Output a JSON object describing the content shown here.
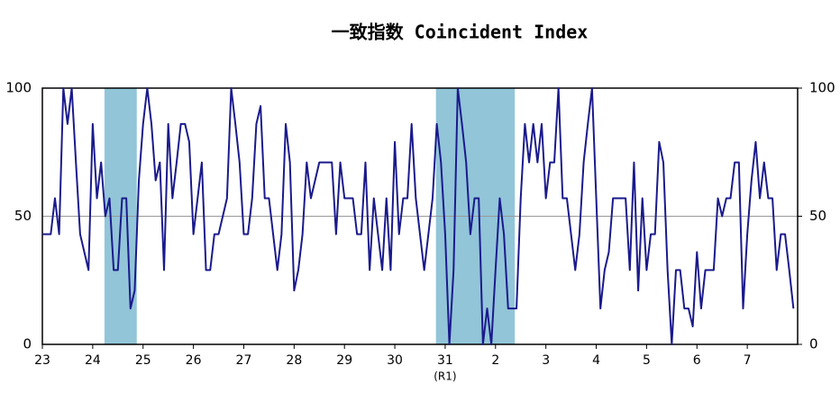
{
  "chart_data": {
    "type": "line",
    "title": "一致指数 Coincident Index",
    "annotation": "(R1)",
    "xlim": [
      0,
      180
    ],
    "xticks": [
      {
        "value": 0,
        "label": "23"
      },
      {
        "value": 12,
        "label": "24"
      },
      {
        "value": 24,
        "label": "25"
      },
      {
        "value": 36,
        "label": "26"
      },
      {
        "value": 48,
        "label": "27"
      },
      {
        "value": 60,
        "label": "28"
      },
      {
        "value": 72,
        "label": "29"
      },
      {
        "value": 84,
        "label": "30"
      },
      {
        "value": 96,
        "label": "31"
      },
      {
        "value": 108,
        "label": "2"
      },
      {
        "value": 120,
        "label": "3"
      },
      {
        "value": 132,
        "label": "4"
      },
      {
        "value": 144,
        "label": "5"
      },
      {
        "value": 156,
        "label": "6"
      },
      {
        "value": 168,
        "label": "7"
      }
    ],
    "ylim": [
      0,
      100
    ],
    "yticks": [
      0,
      50,
      100
    ],
    "y2lim": [
      0,
      100
    ],
    "y2ticks": [
      0,
      50,
      100
    ],
    "grid": true,
    "shaded": [
      [
        14.8,
        22.5
      ],
      [
        93.8,
        112.6
      ]
    ],
    "shade_color": "#92c5d8",
    "series": [
      {
        "color": "#1a1a8c",
        "values": [
          43,
          43,
          43,
          57,
          43,
          100,
          86,
          100,
          71,
          43,
          36,
          29,
          86,
          57,
          71,
          50,
          57,
          29,
          29,
          57,
          57,
          14,
          21,
          64,
          86,
          100,
          86,
          64,
          71,
          29,
          86,
          57,
          71,
          86,
          86,
          79,
          43,
          57,
          71,
          29,
          29,
          43,
          43,
          50,
          57,
          100,
          86,
          71,
          43,
          43,
          57,
          86,
          93,
          57,
          57,
          43,
          29,
          43,
          86,
          71,
          21,
          29,
          43,
          71,
          57,
          64,
          71,
          71,
          71,
          71,
          43,
          71,
          57,
          57,
          57,
          43,
          43,
          71,
          29,
          57,
          43,
          29,
          57,
          29,
          79,
          43,
          57,
          57,
          86,
          57,
          43,
          29,
          43,
          57,
          86,
          71,
          43,
          0,
          29,
          100,
          86,
          71,
          43,
          57,
          57,
          0,
          14,
          0,
          29,
          57,
          43,
          14,
          14,
          14,
          57,
          86,
          71,
          86,
          71,
          86,
          57,
          71,
          71,
          100,
          57,
          57,
          43,
          29,
          43,
          71,
          86,
          100,
          57,
          14,
          29,
          36,
          57,
          57,
          57,
          57,
          29,
          71,
          21,
          57,
          29,
          43,
          43,
          79,
          71,
          29,
          0,
          29,
          29,
          14,
          14,
          7,
          36,
          14,
          29,
          29,
          29,
          57,
          50,
          57,
          57,
          71,
          71,
          14,
          43,
          64,
          79,
          57,
          71,
          57,
          57,
          29,
          43,
          43,
          29,
          14
        ]
      }
    ]
  }
}
